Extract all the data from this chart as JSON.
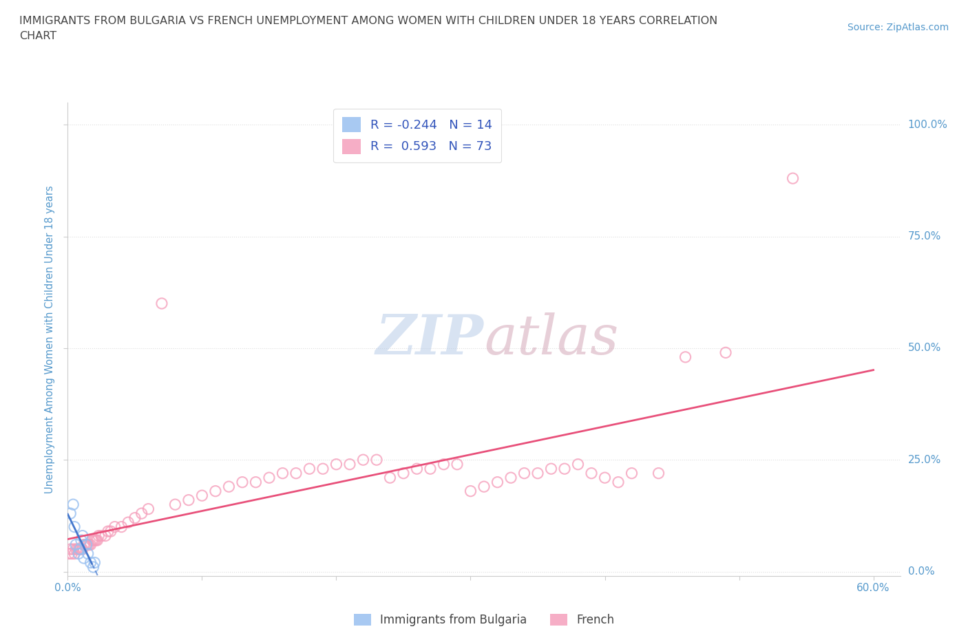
{
  "title_line1": "IMMIGRANTS FROM BULGARIA VS FRENCH UNEMPLOYMENT AMONG WOMEN WITH CHILDREN UNDER 18 YEARS CORRELATION",
  "title_line2": "CHART",
  "source_text": "Source: ZipAtlas.com",
  "ylabel": "Unemployment Among Women with Children Under 18 years",
  "xlim": [
    0.0,
    0.62
  ],
  "ylim": [
    -0.01,
    1.05
  ],
  "xtick_left": 0.0,
  "xtick_right": 0.6,
  "yticks": [
    0.0,
    0.25,
    0.5,
    0.75,
    1.0
  ],
  "yticklabels": [
    "0.0%",
    "25.0%",
    "50.0%",
    "75.0%",
    "100.0%"
  ],
  "legend_r1": "R = -0.244",
  "legend_n1": "N = 14",
  "legend_r2": "R =  0.593",
  "legend_n2": "N = 73",
  "blue_scatter_color": "#99C0F0",
  "pink_scatter_color": "#F5A0BC",
  "trend_blue_color": "#4477CC",
  "trend_pink_color": "#E8507A",
  "grid_color": "#DDDDDD",
  "title_color": "#444444",
  "axis_label_color": "#5599CC",
  "tick_label_color": "#5599CC",
  "background_color": "#FFFFFF",
  "blue_x": [
    0.002,
    0.004,
    0.005,
    0.006,
    0.008,
    0.009,
    0.01,
    0.011,
    0.012,
    0.014,
    0.015,
    0.017,
    0.019,
    0.02
  ],
  "blue_y": [
    0.13,
    0.15,
    0.1,
    0.06,
    0.04,
    0.05,
    0.07,
    0.08,
    0.03,
    0.06,
    0.04,
    0.02,
    0.01,
    0.02
  ],
  "pink_x": [
    0.001,
    0.002,
    0.003,
    0.004,
    0.005,
    0.006,
    0.007,
    0.008,
    0.009,
    0.01,
    0.011,
    0.012,
    0.013,
    0.014,
    0.015,
    0.016,
    0.017,
    0.018,
    0.019,
    0.02,
    0.021,
    0.022,
    0.023,
    0.025,
    0.028,
    0.03,
    0.032,
    0.035,
    0.04,
    0.045,
    0.05,
    0.055,
    0.06,
    0.07,
    0.08,
    0.09,
    0.1,
    0.11,
    0.12,
    0.13,
    0.14,
    0.15,
    0.16,
    0.17,
    0.18,
    0.19,
    0.2,
    0.21,
    0.22,
    0.23,
    0.24,
    0.25,
    0.26,
    0.27,
    0.28,
    0.29,
    0.3,
    0.31,
    0.32,
    0.33,
    0.34,
    0.35,
    0.36,
    0.37,
    0.38,
    0.39,
    0.4,
    0.41,
    0.42,
    0.44,
    0.46,
    0.49,
    0.54
  ],
  "pink_y": [
    0.04,
    0.05,
    0.04,
    0.05,
    0.04,
    0.05,
    0.05,
    0.05,
    0.05,
    0.05,
    0.05,
    0.06,
    0.06,
    0.06,
    0.06,
    0.06,
    0.06,
    0.07,
    0.07,
    0.07,
    0.07,
    0.07,
    0.08,
    0.08,
    0.08,
    0.09,
    0.09,
    0.1,
    0.1,
    0.11,
    0.12,
    0.13,
    0.14,
    0.6,
    0.15,
    0.16,
    0.17,
    0.18,
    0.19,
    0.2,
    0.2,
    0.21,
    0.22,
    0.22,
    0.23,
    0.23,
    0.24,
    0.24,
    0.25,
    0.25,
    0.21,
    0.22,
    0.23,
    0.23,
    0.24,
    0.24,
    0.18,
    0.19,
    0.2,
    0.21,
    0.22,
    0.22,
    0.23,
    0.23,
    0.24,
    0.22,
    0.21,
    0.2,
    0.22,
    0.22,
    0.48,
    0.49,
    0.88
  ]
}
